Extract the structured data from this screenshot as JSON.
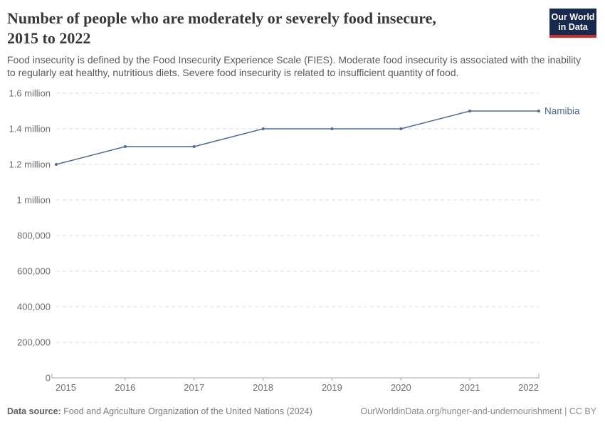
{
  "header": {
    "title_lines": [
      "Number of people who are moderately or severely food insecure,",
      "2015 to 2022"
    ],
    "subtitle_lines": [
      "Food insecurity is defined by the Food Insecurity Experience Scale (FIES). Moderate food insecurity is associated with the",
      "inability to regularly eat healthy, nutritious diets. Severe food insecurity is related to insufficient quantity of food."
    ],
    "logo": {
      "line1": "Our World",
      "line2": "in Data"
    }
  },
  "chart_data": {
    "type": "line",
    "title": "Number of people who are moderately or severely food insecure, 2015 to 2022",
    "x": [
      2015,
      2016,
      2017,
      2018,
      2019,
      2020,
      2021,
      2022
    ],
    "xtick_labels": [
      "2015",
      "2016",
      "2017",
      "2018",
      "2019",
      "2020",
      "2021",
      "2022"
    ],
    "series": [
      {
        "name": "Namibia",
        "color": "#4C6A9C",
        "values": [
          1200000,
          1300000,
          1300000,
          1400000,
          1400000,
          1400000,
          1500000,
          1500000
        ]
      }
    ],
    "ylim": [
      0,
      1600000
    ],
    "ytick_interval": 200000,
    "ytick_labels": [
      "0",
      "200,000",
      "400,000",
      "600,000",
      "800,000",
      "1 million",
      "1.2 million",
      "1.4 million",
      "1.6 million"
    ],
    "grid": "horizontal-dashed",
    "legend": "line-end-label"
  },
  "footer": {
    "datasource_label": "Data source:",
    "datasource_value": "Food and Agriculture Organization of the United Nations (2024)",
    "link": "OurWorldinData.org/hunger-and-undernourishment | CC BY"
  },
  "colors": {
    "line": "#4C6A9C",
    "logo_navy": "#17294d",
    "logo_red": "#cf2d24",
    "axis": "#a8a8a8",
    "gridline": "#dcdcdc",
    "tick_label": "#6e6e6e"
  }
}
